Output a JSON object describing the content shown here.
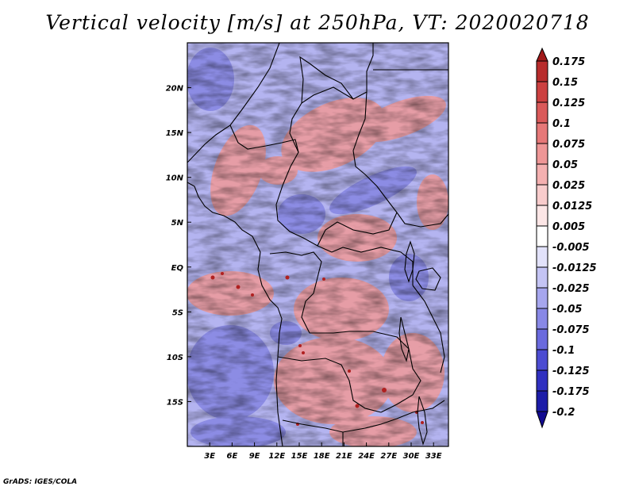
{
  "title": "Vertical velocity [m/s] at 250hPa, VT: 2020020718",
  "credit": "GrADS: IGES/COLA",
  "map": {
    "lon_range": [
      0,
      35
    ],
    "lat_range": [
      -20,
      25
    ],
    "lon_ticks": [
      {
        "value": 3,
        "label": "3E"
      },
      {
        "value": 6,
        "label": "6E"
      },
      {
        "value": 9,
        "label": "9E"
      },
      {
        "value": 12,
        "label": "12E"
      },
      {
        "value": 15,
        "label": "15E"
      },
      {
        "value": 18,
        "label": "18E"
      },
      {
        "value": 21,
        "label": "21E"
      },
      {
        "value": 24,
        "label": "24E"
      },
      {
        "value": 27,
        "label": "27E"
      },
      {
        "value": 30,
        "label": "30E"
      },
      {
        "value": 33,
        "label": "33E"
      }
    ],
    "lat_ticks": [
      {
        "value": 20,
        "label": "20N"
      },
      {
        "value": 15,
        "label": "15N"
      },
      {
        "value": 10,
        "label": "10N"
      },
      {
        "value": 5,
        "label": "5N"
      },
      {
        "value": 0,
        "label": "EQ"
      },
      {
        "value": -5,
        "label": "5S"
      },
      {
        "value": -10,
        "label": "10S"
      },
      {
        "value": -15,
        "label": "15S"
      }
    ]
  },
  "colorbar": {
    "levels": [
      "0.175",
      "0.15",
      "0.125",
      "0.1",
      "0.075",
      "0.05",
      "0.025",
      "0.0125",
      "0.005",
      "-0.005",
      "-0.0125",
      "-0.025",
      "-0.05",
      "-0.075",
      "-0.1",
      "-0.125",
      "-0.175",
      "-0.2"
    ],
    "colors": [
      "#a01818",
      "#b82c2c",
      "#cc4040",
      "#da5a5a",
      "#e67878",
      "#ee9696",
      "#f4b0b0",
      "#f8cccc",
      "#fce6e6",
      "#ffffff",
      "#e2e2fa",
      "#c4c4f4",
      "#a6a6ee",
      "#8888e6",
      "#6a6ade",
      "#4c4cd2",
      "#3030c0",
      "#1c1ca8",
      "#120a90"
    ]
  }
}
